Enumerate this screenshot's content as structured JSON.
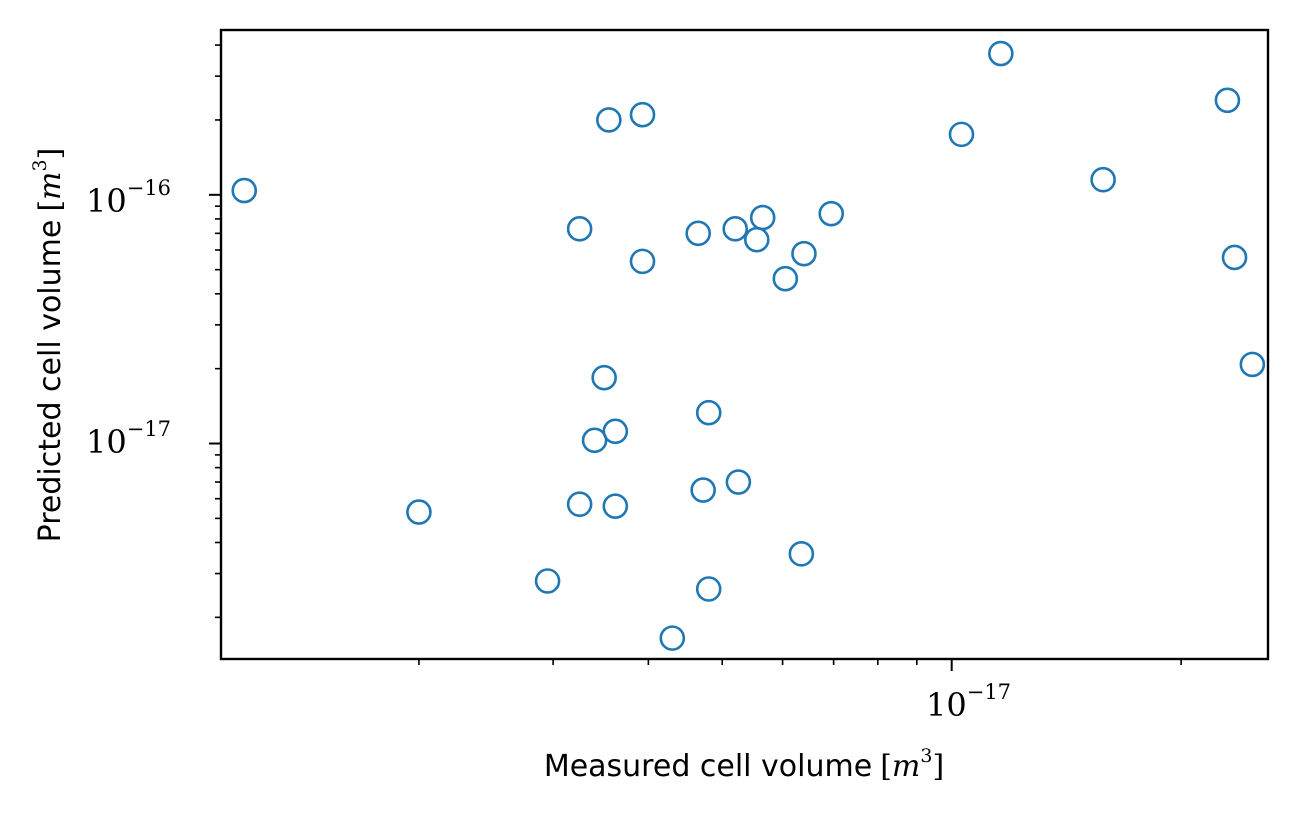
{
  "chart_data": {
    "type": "scatter",
    "x_scale": "log",
    "y_scale": "log",
    "xlabel": "Measured cell volume",
    "ylabel": "Predicted cell volume",
    "unit": {
      "symbol": "m",
      "exponent": "3"
    },
    "x_ticks": [
      {
        "base": "10",
        "exponent": "−17",
        "value": 1e-17
      }
    ],
    "y_ticks": [
      {
        "base": "10",
        "exponent": "−16",
        "value": 1e-16
      },
      {
        "base": "10",
        "exponent": "−17",
        "value": 1e-17
      }
    ],
    "xlim": [
      1.1e-18,
      2.6e-17
    ],
    "ylim": [
      1.36e-18,
      4.6e-16
    ],
    "grid": false,
    "marker": {
      "shape": "open-circle",
      "color": "#1f77b4"
    },
    "points": [
      {
        "x": 1.18e-18,
        "y": 1.04e-16
      },
      {
        "x": 2e-18,
        "y": 5.3e-18
      },
      {
        "x": 2.95e-18,
        "y": 2.8e-18
      },
      {
        "x": 3.25e-18,
        "y": 7.3e-17
      },
      {
        "x": 3.25e-18,
        "y": 5.7e-18
      },
      {
        "x": 3.4e-18,
        "y": 1.03e-17
      },
      {
        "x": 3.5e-18,
        "y": 1.84e-17
      },
      {
        "x": 3.55e-18,
        "y": 2e-16
      },
      {
        "x": 3.62e-18,
        "y": 1.12e-17
      },
      {
        "x": 3.62e-18,
        "y": 5.6e-18
      },
      {
        "x": 3.93e-18,
        "y": 2.1e-16
      },
      {
        "x": 3.93e-18,
        "y": 5.4e-17
      },
      {
        "x": 4.3e-18,
        "y": 1.65e-18
      },
      {
        "x": 4.65e-18,
        "y": 7e-17
      },
      {
        "x": 4.72e-18,
        "y": 6.5e-18
      },
      {
        "x": 4.8e-18,
        "y": 1.33e-17
      },
      {
        "x": 4.8e-18,
        "y": 2.6e-18
      },
      {
        "x": 5.2e-18,
        "y": 7.3e-17
      },
      {
        "x": 5.25e-18,
        "y": 7e-18
      },
      {
        "x": 5.55e-18,
        "y": 6.6e-17
      },
      {
        "x": 5.65e-18,
        "y": 8.1e-17
      },
      {
        "x": 6.05e-18,
        "y": 4.6e-17
      },
      {
        "x": 6.4e-18,
        "y": 5.8e-17
      },
      {
        "x": 6.35e-18,
        "y": 3.6e-18
      },
      {
        "x": 6.95e-18,
        "y": 8.4e-17
      },
      {
        "x": 1.03e-17,
        "y": 1.75e-16
      },
      {
        "x": 1.16e-17,
        "y": 3.7e-16
      },
      {
        "x": 1.58e-17,
        "y": 1.15e-16
      },
      {
        "x": 2.3e-17,
        "y": 2.4e-16
      },
      {
        "x": 2.35e-17,
        "y": 5.6e-17
      },
      {
        "x": 2.48e-17,
        "y": 2.08e-17
      }
    ]
  }
}
